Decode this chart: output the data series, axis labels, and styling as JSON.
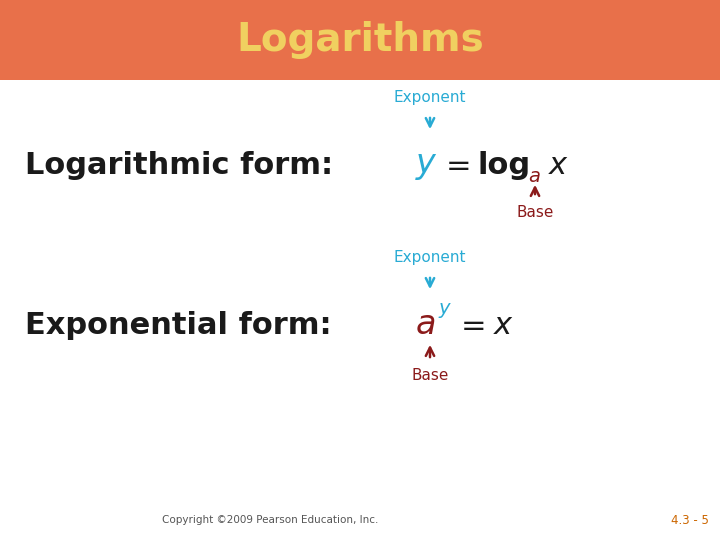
{
  "title": "Logarithms",
  "title_bg_color": "#E8704A",
  "title_text_color": "#F0D060",
  "bg_color": "#FFFFFF",
  "cyan_color": "#29ABD4",
  "red_color": "#8B1A1A",
  "black_color": "#1A1A1A",
  "copyright_text": "Copyright ©2009 Pearson Education, Inc.",
  "page_label": "4.3 - 5",
  "page_label_color": "#CC6600",
  "fig_w": 7.2,
  "fig_h": 5.4,
  "dpi": 100
}
